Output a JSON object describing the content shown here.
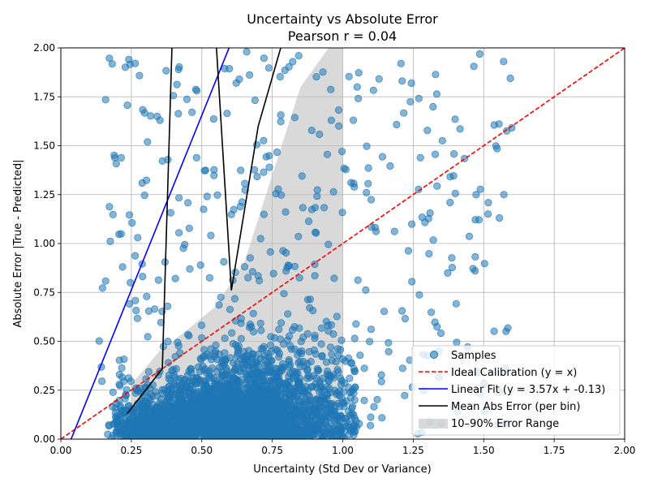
{
  "chart_data": {
    "type": "scatter",
    "title": "Uncertainty vs Absolute Error",
    "subtitle": "Pearson r = 0.04",
    "xlabel": "Uncertainty (Std Dev or Variance)",
    "ylabel": "Absolute Error |True - Predicted|",
    "xlim": [
      0,
      2
    ],
    "ylim": [
      0,
      2
    ],
    "xticks": [
      "0.00",
      "0.25",
      "0.50",
      "0.75",
      "1.00",
      "1.25",
      "1.50",
      "1.75",
      "2.00"
    ],
    "yticks": [
      "0.00",
      "0.25",
      "0.50",
      "0.75",
      "1.00",
      "1.25",
      "1.50",
      "1.75",
      "2.00"
    ],
    "grid": true,
    "legend_position": "lower-right",
    "colors": {
      "samples": "#1f77b4",
      "ideal": "#ff0000",
      "fit": "#0000ff",
      "mean": "#000000",
      "band": "#bfbfbf"
    },
    "legend": [
      {
        "label": "Samples",
        "kind": "marker"
      },
      {
        "label": "Ideal Calibration (y = x)",
        "kind": "dashed"
      },
      {
        "label": "Linear Fit (y = 3.57x + -0.13)",
        "kind": "line"
      },
      {
        "label": "Mean Abs Error (per bin)",
        "kind": "line"
      },
      {
        "label": "10–90% Error Range",
        "kind": "patch"
      }
    ],
    "ideal_line": {
      "slope": 1,
      "intercept": 0
    },
    "linear_fit": {
      "slope": 3.57,
      "intercept": -0.13
    },
    "mean_abs_error": {
      "x": [
        0.235,
        0.36,
        0.395,
        0.55,
        0.605,
        0.7,
        0.79
      ],
      "y": [
        0.13,
        0.36,
        2.05,
        2.05,
        0.76,
        1.6,
        2.05
      ]
    },
    "error_range": {
      "x": [
        0.25,
        0.35,
        0.45,
        0.55,
        0.65,
        0.75,
        0.85,
        0.95,
        1.0
      ],
      "lower": [
        0.0,
        0.0,
        0.0,
        0.0,
        0.0,
        0.0,
        0.01,
        0.02,
        0.03
      ],
      "upper": [
        0.28,
        0.45,
        0.56,
        0.68,
        0.9,
        1.35,
        1.8,
        2.0,
        2.0
      ]
    },
    "samples": {
      "n": 3200,
      "x_range": [
        0.05,
        1.6
      ],
      "y_range": [
        0.0,
        1.99
      ]
    }
  }
}
